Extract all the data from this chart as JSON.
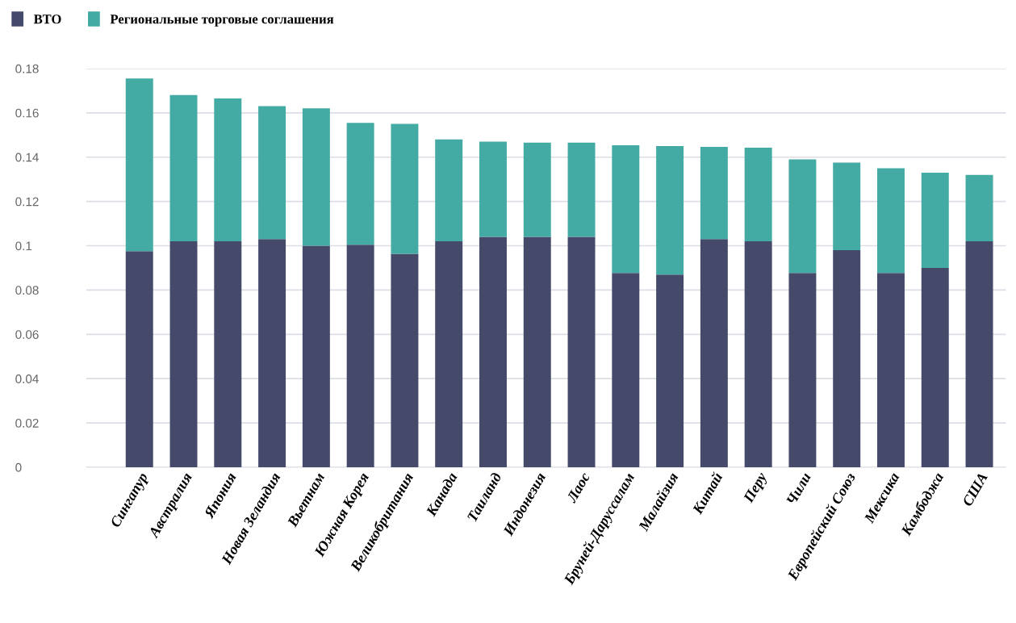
{
  "chart_data": {
    "type": "bar",
    "stacked": true,
    "categories": [
      "Сингапур",
      "Австралия",
      "Япония",
      "Новая Зеландия",
      "Вьетнам",
      "Южная Корея",
      "Великобритания",
      "Канада",
      "Таиланд",
      "Индонезия",
      "Лаос",
      "Бруней-Даруссалам",
      "Малайзия",
      "Китай",
      "Перу",
      "Чили",
      "Европейский Союз",
      "Мексика",
      "Камбоджа",
      "США"
    ],
    "series": [
      {
        "name": "ВТО",
        "color": "#454a6b",
        "values": [
          0.0975,
          0.102,
          0.102,
          0.103,
          0.1,
          0.1005,
          0.0964,
          0.102,
          0.104,
          0.104,
          0.104,
          0.0877,
          0.087,
          0.103,
          0.102,
          0.0877,
          0.098,
          0.0877,
          0.09,
          0.102
        ]
      },
      {
        "name": "Региональные торговые соглашения",
        "color": "#43aba3",
        "values": [
          0.078,
          0.066,
          0.0645,
          0.06,
          0.062,
          0.055,
          0.0586,
          0.046,
          0.043,
          0.0425,
          0.0425,
          0.0577,
          0.058,
          0.0416,
          0.0423,
          0.0513,
          0.0395,
          0.0473,
          0.043,
          0.03
        ]
      }
    ],
    "ylim": [
      0,
      0.18
    ],
    "yticks": [
      0,
      0.02,
      0.04,
      0.06,
      0.08,
      0.1,
      0.12,
      0.14,
      0.16,
      0.18
    ],
    "grid": "y",
    "legend": "top left"
  }
}
